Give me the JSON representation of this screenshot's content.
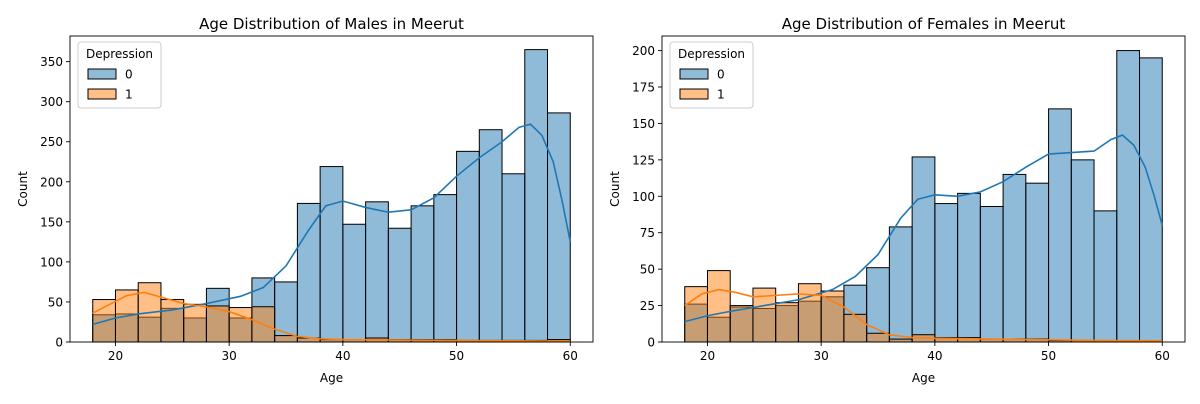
{
  "chart_data": [
    {
      "type": "histogram",
      "title": "Age Distribution of Males in Meerut",
      "xlabel": "Age",
      "ylabel": "Count",
      "xlim": [
        16,
        62
      ],
      "ylim": [
        0,
        382
      ],
      "xticks": [
        20,
        30,
        40,
        50,
        60
      ],
      "yticks": [
        0,
        50,
        100,
        150,
        200,
        250,
        300,
        350
      ],
      "bin_edges": [
        18,
        20,
        22,
        24,
        26,
        28,
        30,
        32,
        34,
        36,
        38,
        40,
        42,
        44,
        46,
        48,
        50,
        52,
        54,
        56,
        58,
        60
      ],
      "legend": {
        "title": "Depression",
        "location": "upper left",
        "entries": [
          "0",
          "1"
        ]
      },
      "series": [
        {
          "name": "0",
          "color": "#1f77b4",
          "values": [
            34,
            35,
            31,
            42,
            30,
            67,
            30,
            80,
            75,
            173,
            219,
            147,
            175,
            142,
            170,
            184,
            238,
            265,
            210,
            365,
            286
          ],
          "kde": [
            [
              18,
              22
            ],
            [
              20,
              30
            ],
            [
              22,
              35
            ],
            [
              25,
              40
            ],
            [
              28,
              48
            ],
            [
              31,
              57
            ],
            [
              33,
              68
            ],
            [
              35,
              95
            ],
            [
              37,
              140
            ],
            [
              38.5,
              170
            ],
            [
              40,
              176
            ],
            [
              42,
              168
            ],
            [
              44,
              162
            ],
            [
              46,
              165
            ],
            [
              48,
              180
            ],
            [
              50,
              207
            ],
            [
              52,
              230
            ],
            [
              54,
              250
            ],
            [
              55.5,
              268
            ],
            [
              56.5,
              272
            ],
            [
              57.5,
              258
            ],
            [
              58.5,
              225
            ],
            [
              59.3,
              175
            ],
            [
              60,
              125
            ]
          ]
        },
        {
          "name": "1",
          "color": "#ff7f0e",
          "values": [
            53,
            65,
            74,
            53,
            47,
            45,
            43,
            44,
            8,
            5,
            3,
            3,
            5,
            3,
            3,
            3,
            2,
            2,
            2,
            2,
            3
          ],
          "kde": [
            [
              18,
              36
            ],
            [
              19.5,
              47
            ],
            [
              21,
              58
            ],
            [
              22.5,
              62
            ],
            [
              24,
              56
            ],
            [
              26,
              48
            ],
            [
              28,
              44
            ],
            [
              30,
              38
            ],
            [
              32,
              28
            ],
            [
              34,
              16
            ],
            [
              36,
              7
            ],
            [
              38,
              4
            ],
            [
              40,
              3
            ],
            [
              45,
              2.5
            ],
            [
              50,
              2
            ],
            [
              55,
              1.5
            ],
            [
              60,
              1
            ]
          ]
        }
      ]
    },
    {
      "type": "histogram",
      "title": "Age Distribution of Females in Meerut",
      "xlabel": "Age",
      "ylabel": "Count",
      "xlim": [
        16,
        62
      ],
      "ylim": [
        0,
        210
      ],
      "xticks": [
        20,
        30,
        40,
        50,
        60
      ],
      "yticks": [
        0,
        25,
        50,
        75,
        100,
        125,
        150,
        175,
        200
      ],
      "bin_edges": [
        18,
        20,
        22,
        24,
        26,
        28,
        30,
        32,
        34,
        36,
        38,
        40,
        42,
        44,
        46,
        48,
        50,
        52,
        54,
        56,
        58,
        60
      ],
      "legend": {
        "title": "Depression",
        "location": "upper left",
        "entries": [
          "0",
          "1"
        ]
      },
      "series": [
        {
          "name": "0",
          "color": "#1f77b4",
          "values": [
            26,
            17,
            24,
            23,
            25,
            28,
            31,
            39,
            51,
            79,
            127,
            95,
            102,
            93,
            115,
            109,
            160,
            125,
            90,
            200,
            195
          ],
          "kde": [
            [
              18,
              14
            ],
            [
              20,
              18
            ],
            [
              22,
              21
            ],
            [
              25,
              25
            ],
            [
              28,
              29
            ],
            [
              31,
              36
            ],
            [
              33,
              45
            ],
            [
              35,
              60
            ],
            [
              37,
              85
            ],
            [
              38.5,
              98
            ],
            [
              40,
              101
            ],
            [
              42,
              100
            ],
            [
              44,
              103
            ],
            [
              46,
              110
            ],
            [
              48,
              120
            ],
            [
              50,
              129
            ],
            [
              52,
              130
            ],
            [
              54,
              131
            ],
            [
              55.5,
              139
            ],
            [
              56.5,
              142
            ],
            [
              57.5,
              135
            ],
            [
              58.5,
              120
            ],
            [
              59.3,
              100
            ],
            [
              60,
              80
            ]
          ]
        },
        {
          "name": "1",
          "color": "#ff7f0e",
          "values": [
            38,
            49,
            25,
            37,
            27,
            40,
            35,
            19,
            6,
            2,
            5,
            3,
            3,
            2,
            2,
            2,
            1,
            1,
            1,
            1,
            1
          ],
          "kde": [
            [
              18,
              25
            ],
            [
              19.5,
              33
            ],
            [
              21,
              36
            ],
            [
              22.5,
              34
            ],
            [
              24,
              31
            ],
            [
              26,
              32
            ],
            [
              28,
              33
            ],
            [
              30,
              32
            ],
            [
              32,
              24
            ],
            [
              34,
              12
            ],
            [
              36,
              5
            ],
            [
              38,
              3
            ],
            [
              40,
              2.5
            ],
            [
              45,
              2
            ],
            [
              50,
              1.5
            ],
            [
              55,
              1
            ],
            [
              60,
              0.8
            ]
          ]
        }
      ]
    }
  ]
}
